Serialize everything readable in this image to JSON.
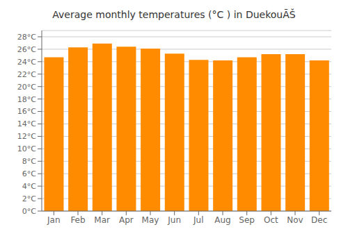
{
  "chart_data": {
    "type": "bar",
    "title": "Average monthly temperatures (°C ) in DuekouÃŠ",
    "categories": [
      "Jan",
      "Feb",
      "Mar",
      "Apr",
      "May",
      "Jun",
      "Jul",
      "Aug",
      "Sep",
      "Oct",
      "Nov",
      "Dec"
    ],
    "values": [
      24.7,
      26.3,
      26.9,
      26.4,
      26.1,
      25.3,
      24.3,
      24.2,
      24.7,
      25.2,
      25.2,
      24.2
    ],
    "color": "#ff8c00",
    "ylim": [
      0,
      29
    ],
    "yticks": [
      {
        "value": 0,
        "label": "0°C"
      },
      {
        "value": 2,
        "label": "2°C"
      },
      {
        "value": 4,
        "label": "4°C"
      },
      {
        "value": 6,
        "label": "6°C"
      },
      {
        "value": 8,
        "label": "8°C"
      },
      {
        "value": 10,
        "label": "10°C"
      },
      {
        "value": 12,
        "label": "12°C"
      },
      {
        "value": 14,
        "label": "14°C"
      },
      {
        "value": 16,
        "label": "16°C"
      },
      {
        "value": 18,
        "label": "18°C"
      },
      {
        "value": 20,
        "label": "20°C"
      },
      {
        "value": 22,
        "label": "22°C"
      },
      {
        "value": 24,
        "label": "24°C"
      },
      {
        "value": 26,
        "label": "26°C"
      },
      {
        "value": 28,
        "label": "28°C"
      }
    ],
    "grid": true
  }
}
